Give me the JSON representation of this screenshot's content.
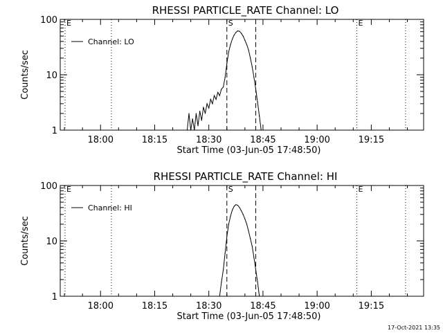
{
  "chart_data": [
    {
      "type": "line",
      "title": "RHESSI PARTICLE_RATE Channel: LO",
      "xlabel": "Start Time (03-Jun-05 17:48:50)",
      "ylabel": "Counts/sec",
      "y_scale": "log",
      "ylim": [
        1,
        100
      ],
      "y_ticks": [
        "1",
        "10",
        "100"
      ],
      "xlim": [
        "17:48:50",
        "19:29:30"
      ],
      "x_ticks": [
        "18:00",
        "18:15",
        "18:30",
        "18:45",
        "19:00",
        "19:15"
      ],
      "grid": false,
      "legend": "top-left",
      "markers": [
        {
          "label": "E",
          "time": "17:50:10",
          "style": "dotted"
        },
        {
          "label": "",
          "time": "18:03:00",
          "style": "dotted"
        },
        {
          "label": "S",
          "time": "18:35:00",
          "style": "dashed"
        },
        {
          "label": "",
          "time": "18:43:00",
          "style": "dashed"
        },
        {
          "label": "E",
          "time": "19:11:00",
          "style": "dotted"
        },
        {
          "label": "",
          "time": "19:24:30",
          "style": "dotted"
        }
      ],
      "series": [
        {
          "name": "Channel: LO",
          "points": [
            [
              "18:24:00",
              1.0
            ],
            [
              "18:24:30",
              2.0
            ],
            [
              "18:25:00",
              1.0
            ],
            [
              "18:25:30",
              1.6
            ],
            [
              "18:26:00",
              1.0
            ],
            [
              "18:26:30",
              2.0
            ],
            [
              "18:27:00",
              1.2
            ],
            [
              "18:27:30",
              2.2
            ],
            [
              "18:28:00",
              1.5
            ],
            [
              "18:28:30",
              2.6
            ],
            [
              "18:29:00",
              2.0
            ],
            [
              "18:29:30",
              3.0
            ],
            [
              "18:30:00",
              2.5
            ],
            [
              "18:30:30",
              3.6
            ],
            [
              "18:31:00",
              3.0
            ],
            [
              "18:31:30",
              4.2
            ],
            [
              "18:32:00",
              3.6
            ],
            [
              "18:32:30",
              4.8
            ],
            [
              "18:33:00",
              4.2
            ],
            [
              "18:33:30",
              5.5
            ],
            [
              "18:34:00",
              6.0
            ],
            [
              "18:34:30",
              9.0
            ],
            [
              "18:35:00",
              16.0
            ],
            [
              "18:35:30",
              26.0
            ],
            [
              "18:36:00",
              35.0
            ],
            [
              "18:36:30",
              44.0
            ],
            [
              "18:37:00",
              52.0
            ],
            [
              "18:37:30",
              58.0
            ],
            [
              "18:38:00",
              62.0
            ],
            [
              "18:38:30",
              61.0
            ],
            [
              "18:39:00",
              56.0
            ],
            [
              "18:39:30",
              50.0
            ],
            [
              "18:40:00",
              42.0
            ],
            [
              "18:40:30",
              35.0
            ],
            [
              "18:41:00",
              28.0
            ],
            [
              "18:41:30",
              20.0
            ],
            [
              "18:42:00",
              14.0
            ],
            [
              "18:42:30",
              9.0
            ],
            [
              "18:43:00",
              5.5
            ],
            [
              "18:43:30",
              3.2
            ],
            [
              "18:44:00",
              1.8
            ],
            [
              "18:44:30",
              1.0
            ]
          ]
        }
      ]
    },
    {
      "type": "line",
      "title": "RHESSI PARTICLE_RATE Channel: HI",
      "xlabel": "Start Time (03-Jun-05 17:48:50)",
      "ylabel": "Counts/sec",
      "y_scale": "log",
      "ylim": [
        1,
        100
      ],
      "y_ticks": [
        "1",
        "10",
        "100"
      ],
      "xlim": [
        "17:48:50",
        "19:29:30"
      ],
      "x_ticks": [
        "18:00",
        "18:15",
        "18:30",
        "18:45",
        "19:00",
        "19:15"
      ],
      "grid": false,
      "legend": "top-left",
      "markers": [
        {
          "label": "E",
          "time": "17:50:10",
          "style": "dotted"
        },
        {
          "label": "",
          "time": "18:03:00",
          "style": "dotted"
        },
        {
          "label": "S",
          "time": "18:35:00",
          "style": "dashed"
        },
        {
          "label": "",
          "time": "18:43:00",
          "style": "dashed"
        },
        {
          "label": "E",
          "time": "19:11:00",
          "style": "dotted"
        },
        {
          "label": "",
          "time": "19:24:30",
          "style": "dotted"
        }
      ],
      "series": [
        {
          "name": "Channel: HI",
          "points": [
            [
              "18:33:00",
              1.0
            ],
            [
              "18:33:30",
              1.8
            ],
            [
              "18:34:00",
              3.0
            ],
            [
              "18:34:30",
              6.0
            ],
            [
              "18:35:00",
              12.0
            ],
            [
              "18:35:30",
              20.0
            ],
            [
              "18:36:00",
              28.0
            ],
            [
              "18:36:30",
              36.0
            ],
            [
              "18:37:00",
              42.0
            ],
            [
              "18:37:30",
              45.0
            ],
            [
              "18:38:00",
              44.0
            ],
            [
              "18:38:30",
              40.0
            ],
            [
              "18:39:00",
              35.0
            ],
            [
              "18:39:30",
              30.0
            ],
            [
              "18:40:00",
              25.0
            ],
            [
              "18:40:30",
              20.0
            ],
            [
              "18:41:00",
              15.0
            ],
            [
              "18:41:30",
              11.0
            ],
            [
              "18:42:00",
              8.0
            ],
            [
              "18:42:30",
              5.0
            ],
            [
              "18:43:00",
              3.0
            ],
            [
              "18:43:30",
              1.8
            ],
            [
              "18:44:00",
              1.0
            ]
          ]
        }
      ]
    }
  ],
  "footer": {
    "timestamp": "17-Oct-2021 13:35"
  }
}
